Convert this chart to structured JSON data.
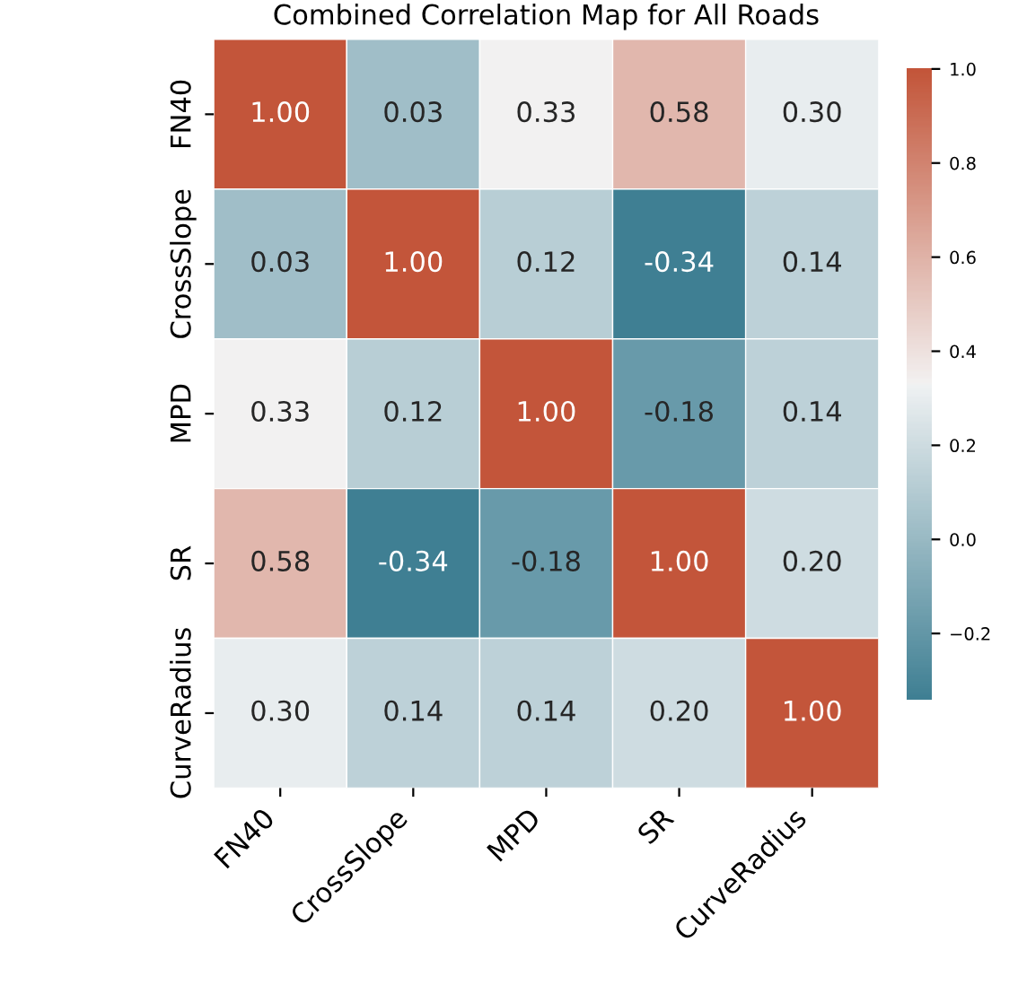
{
  "chart_data": {
    "type": "heatmap",
    "title": "Combined Correlation Map for All Roads",
    "categories": [
      "FN40",
      "CrossSlope",
      "MPD",
      "SR",
      "CurveRadius"
    ],
    "y_categories": [
      "FN40",
      "CrossSlope",
      "MPD",
      "SR",
      "CurveRadius"
    ],
    "cells": [
      [
        1.0,
        0.03,
        0.33,
        0.58,
        0.3
      ],
      [
        0.03,
        1.0,
        0.12,
        -0.34,
        0.14
      ],
      [
        0.33,
        0.12,
        1.0,
        -0.18,
        0.14
      ],
      [
        0.58,
        -0.34,
        -0.18,
        1.0,
        0.2
      ],
      [
        0.3,
        0.14,
        0.14,
        0.2,
        1.0
      ]
    ],
    "cell_labels": [
      [
        "1.00",
        "0.03",
        "0.33",
        "0.58",
        "0.30"
      ],
      [
        "0.03",
        "1.00",
        "0.12",
        "-0.34",
        "0.14"
      ],
      [
        "0.33",
        "0.12",
        "1.00",
        "-0.18",
        "0.14"
      ],
      [
        "0.58",
        "-0.34",
        "-0.18",
        "1.00",
        "0.20"
      ],
      [
        "0.30",
        "0.14",
        "0.14",
        "0.20",
        "1.00"
      ]
    ],
    "clim": [
      -0.34,
      1.0
    ],
    "cticks": [
      {
        "value": -0.2,
        "label": "−0.2"
      },
      {
        "value": 0.0,
        "label": "0.0"
      },
      {
        "value": 0.2,
        "label": "0.2"
      },
      {
        "value": 0.4,
        "label": "0.4"
      },
      {
        "value": 0.6,
        "label": "0.6"
      },
      {
        "value": 0.8,
        "label": "0.8"
      },
      {
        "value": 1.0,
        "label": "1.0"
      }
    ]
  }
}
